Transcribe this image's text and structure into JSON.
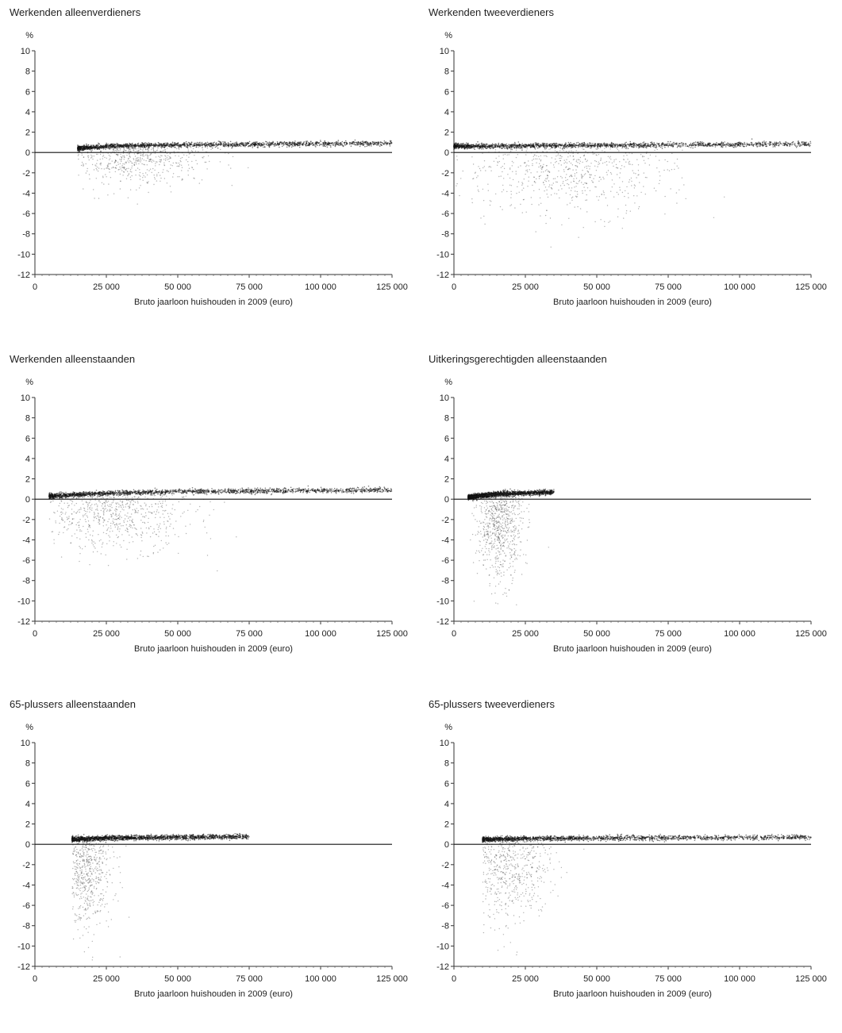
{
  "chart_data": [
    {
      "type": "scatter",
      "title": "Werkenden alleenverdieners",
      "ylabel": "%",
      "xlabel": "Bruto jaarloon huishouden in 2009 (euro)",
      "xlim": [
        0,
        125000
      ],
      "ylim": [
        -12,
        10
      ],
      "xticks": [
        0,
        25000,
        50000,
        75000,
        100000,
        125000
      ],
      "xtick_labels": [
        "0",
        "25 000",
        "50 000",
        "75 000",
        "100 000",
        "125 000"
      ],
      "yticks": [
        10,
        8,
        6,
        4,
        2,
        0,
        -2,
        -4,
        -6,
        -8,
        -10,
        -12
      ],
      "ytick_labels": [
        "10",
        "8",
        "6",
        "4",
        "2",
        "0",
        "-2",
        "-4",
        "-6",
        "-8",
        "-10",
        "-12"
      ],
      "series": [
        {
          "band": [
            [
              15000,
              0.4
            ],
            [
              25000,
              0.6
            ],
            [
              50000,
              0.75
            ],
            [
              75000,
              0.8
            ],
            [
              100000,
              0.85
            ],
            [
              125000,
              0.9
            ]
          ],
          "cluster_center": [
            35000,
            0
          ],
          "spread_x": 12000,
          "spread_y": 1.5
        }
      ]
    },
    {
      "type": "scatter",
      "title": "Werkenden tweeverdieners",
      "ylabel": "%",
      "xlabel": "Bruto jaarloon huishouden in 2009 (euro)",
      "xlim": [
        0,
        125000
      ],
      "ylim": [
        -12,
        10
      ],
      "xticks": [
        0,
        25000,
        50000,
        75000,
        100000,
        125000
      ],
      "xtick_labels": [
        "0",
        "25 000",
        "50 000",
        "75 000",
        "100 000",
        "125 000"
      ],
      "yticks": [
        10,
        8,
        6,
        4,
        2,
        0,
        -2,
        -4,
        -6,
        -8,
        -10,
        -12
      ],
      "ytick_labels": [
        "10",
        "8",
        "6",
        "4",
        "2",
        "0",
        "-2",
        "-4",
        "-6",
        "-8",
        "-10",
        "-12"
      ],
      "series": [
        {
          "band": [
            [
              0,
              0.6
            ],
            [
              25000,
              0.65
            ],
            [
              50000,
              0.7
            ],
            [
              75000,
              0.75
            ],
            [
              100000,
              0.8
            ],
            [
              125000,
              0.85
            ]
          ],
          "cluster_center": [
            40000,
            -1
          ],
          "spread_x": 18000,
          "spread_y": 2.5
        }
      ]
    },
    {
      "type": "scatter",
      "title": "Werkenden alleenstaanden",
      "ylabel": "%",
      "xlabel": "Bruto jaarloon huishouden in 2009 (euro)",
      "xlim": [
        0,
        125000
      ],
      "ylim": [
        -12,
        10
      ],
      "xticks": [
        0,
        25000,
        50000,
        75000,
        100000,
        125000
      ],
      "xtick_labels": [
        "0",
        "25 000",
        "50 000",
        "75 000",
        "100 000",
        "125 000"
      ],
      "yticks": [
        10,
        8,
        6,
        4,
        2,
        0,
        -2,
        -4,
        -6,
        -8,
        -10,
        -12
      ],
      "ytick_labels": [
        "10",
        "8",
        "6",
        "4",
        "2",
        "0",
        "-2",
        "-4",
        "-6",
        "-8",
        "-10",
        "-12"
      ],
      "series": [
        {
          "band": [
            [
              5000,
              0.3
            ],
            [
              25000,
              0.6
            ],
            [
              50000,
              0.75
            ],
            [
              75000,
              0.8
            ],
            [
              100000,
              0.85
            ],
            [
              125000,
              0.9
            ]
          ],
          "cluster_center": [
            28000,
            -1
          ],
          "spread_x": 14000,
          "spread_y": 2.0
        }
      ]
    },
    {
      "type": "scatter",
      "title": "Uitkeringsgerechtigden alleenstaanden",
      "ylabel": "%",
      "xlabel": "Bruto jaarloon huishouden in 2009 (euro)",
      "xlim": [
        0,
        125000
      ],
      "ylim": [
        -12,
        10
      ],
      "xticks": [
        0,
        25000,
        50000,
        75000,
        100000,
        125000
      ],
      "xtick_labels": [
        "0",
        "25 000",
        "50 000",
        "75 000",
        "100 000",
        "125 000"
      ],
      "yticks": [
        10,
        8,
        6,
        4,
        2,
        0,
        -2,
        -4,
        -6,
        -8,
        -10,
        -12
      ],
      "ytick_labels": [
        "10",
        "8",
        "6",
        "4",
        "2",
        "0",
        "-2",
        "-4",
        "-6",
        "-8",
        "-10",
        "-12"
      ],
      "series": [
        {
          "band": [
            [
              5000,
              0.2
            ],
            [
              15000,
              0.5
            ],
            [
              25000,
              0.6
            ],
            [
              35000,
              0.7
            ]
          ],
          "cluster_center": [
            16000,
            -2
          ],
          "spread_x": 4000,
          "spread_y": 3.0
        }
      ]
    },
    {
      "type": "scatter",
      "title": "65-plussers alleenstaanden",
      "ylabel": "%",
      "xlabel": "Bruto jaarloon huishouden in 2009 (euro)",
      "xlim": [
        0,
        125000
      ],
      "ylim": [
        -12,
        10
      ],
      "xticks": [
        0,
        25000,
        50000,
        75000,
        100000,
        125000
      ],
      "xtick_labels": [
        "0",
        "25 000",
        "50 000",
        "75 000",
        "100 000",
        "125 000"
      ],
      "yticks": [
        10,
        8,
        6,
        4,
        2,
        0,
        -2,
        -4,
        -6,
        -8,
        -10,
        -12
      ],
      "ytick_labels": [
        "10",
        "8",
        "6",
        "4",
        "2",
        "0",
        "-2",
        "-4",
        "-6",
        "-8",
        "-10",
        "-12"
      ],
      "series": [
        {
          "band": [
            [
              13000,
              0.5
            ],
            [
              25000,
              0.6
            ],
            [
              50000,
              0.7
            ],
            [
              75000,
              0.75
            ]
          ],
          "cluster_center": [
            17000,
            -2
          ],
          "spread_x": 5000,
          "spread_y": 3.0
        }
      ]
    },
    {
      "type": "scatter",
      "title": "65-plussers tweeverdieners",
      "ylabel": "%",
      "xlabel": "Bruto jaarloon huishouden in 2009 (euro)",
      "xlim": [
        0,
        125000
      ],
      "ylim": [
        -12,
        10
      ],
      "xticks": [
        0,
        25000,
        50000,
        75000,
        100000,
        125000
      ],
      "xtick_labels": [
        "0",
        "25 000",
        "50 000",
        "75 000",
        "100 000",
        "125 000"
      ],
      "yticks": [
        10,
        8,
        6,
        4,
        2,
        0,
        -2,
        -4,
        -6,
        -8,
        -10,
        -12
      ],
      "ytick_labels": [
        "10",
        "8",
        "6",
        "4",
        "2",
        "0",
        "-2",
        "-4",
        "-6",
        "-8",
        "-10",
        "-12"
      ],
      "series": [
        {
          "band": [
            [
              10000,
              0.5
            ],
            [
              25000,
              0.55
            ],
            [
              50000,
              0.6
            ],
            [
              75000,
              0.65
            ],
            [
              100000,
              0.65
            ],
            [
              125000,
              0.7
            ]
          ],
          "cluster_center": [
            17000,
            -1.5
          ],
          "spread_x": 8000,
          "spread_y": 3.0
        }
      ]
    }
  ]
}
